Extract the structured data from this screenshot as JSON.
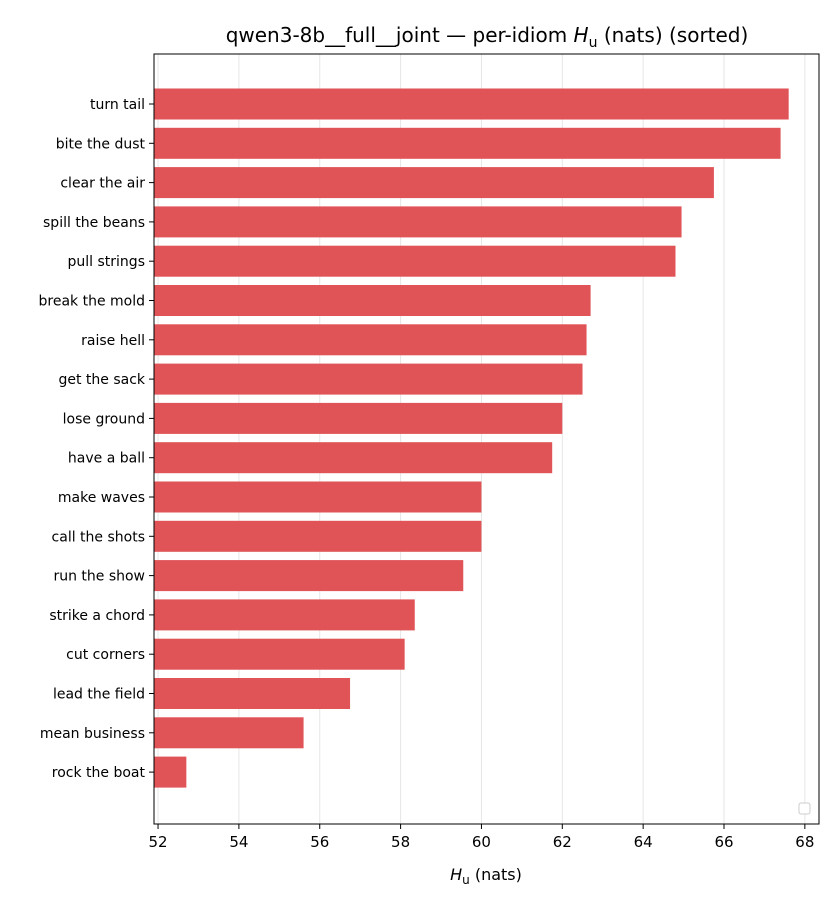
{
  "chart_data": {
    "type": "bar",
    "orientation": "horizontal",
    "title": "qwen3-8b__full__joint — per-idiom H_u (nats) (sorted)",
    "title_parts": {
      "prefix": "qwen3-8b__full__joint — per-idiom ",
      "symbol": "H",
      "subscript": "u",
      "suffix": " (nats) (sorted)"
    },
    "xlabel": "H_u (nats)",
    "xlabel_parts": {
      "symbol": "H",
      "subscript": "u",
      "suffix": " (nats)"
    },
    "ylabel": "",
    "xlim": [
      51.9,
      68.35
    ],
    "xticks": [
      52,
      54,
      56,
      58,
      60,
      62,
      64,
      66,
      68
    ],
    "grid": "x",
    "legend": "bottom-right (empty)",
    "bar_color": "#e05356",
    "categories": [
      "turn tail",
      "bite the dust",
      "clear the air",
      "spill the beans",
      "pull strings",
      "break the mold",
      "raise hell",
      "get the sack",
      "lose ground",
      "have a ball",
      "make waves",
      "call the shots",
      "run the show",
      "strike a chord",
      "cut corners",
      "lead the field",
      "mean business",
      "rock the boat"
    ],
    "values": [
      67.6,
      67.4,
      65.75,
      64.95,
      64.8,
      62.7,
      62.6,
      62.5,
      62.0,
      61.75,
      60.0,
      60.0,
      59.55,
      58.35,
      58.1,
      56.75,
      55.6,
      52.7
    ]
  }
}
